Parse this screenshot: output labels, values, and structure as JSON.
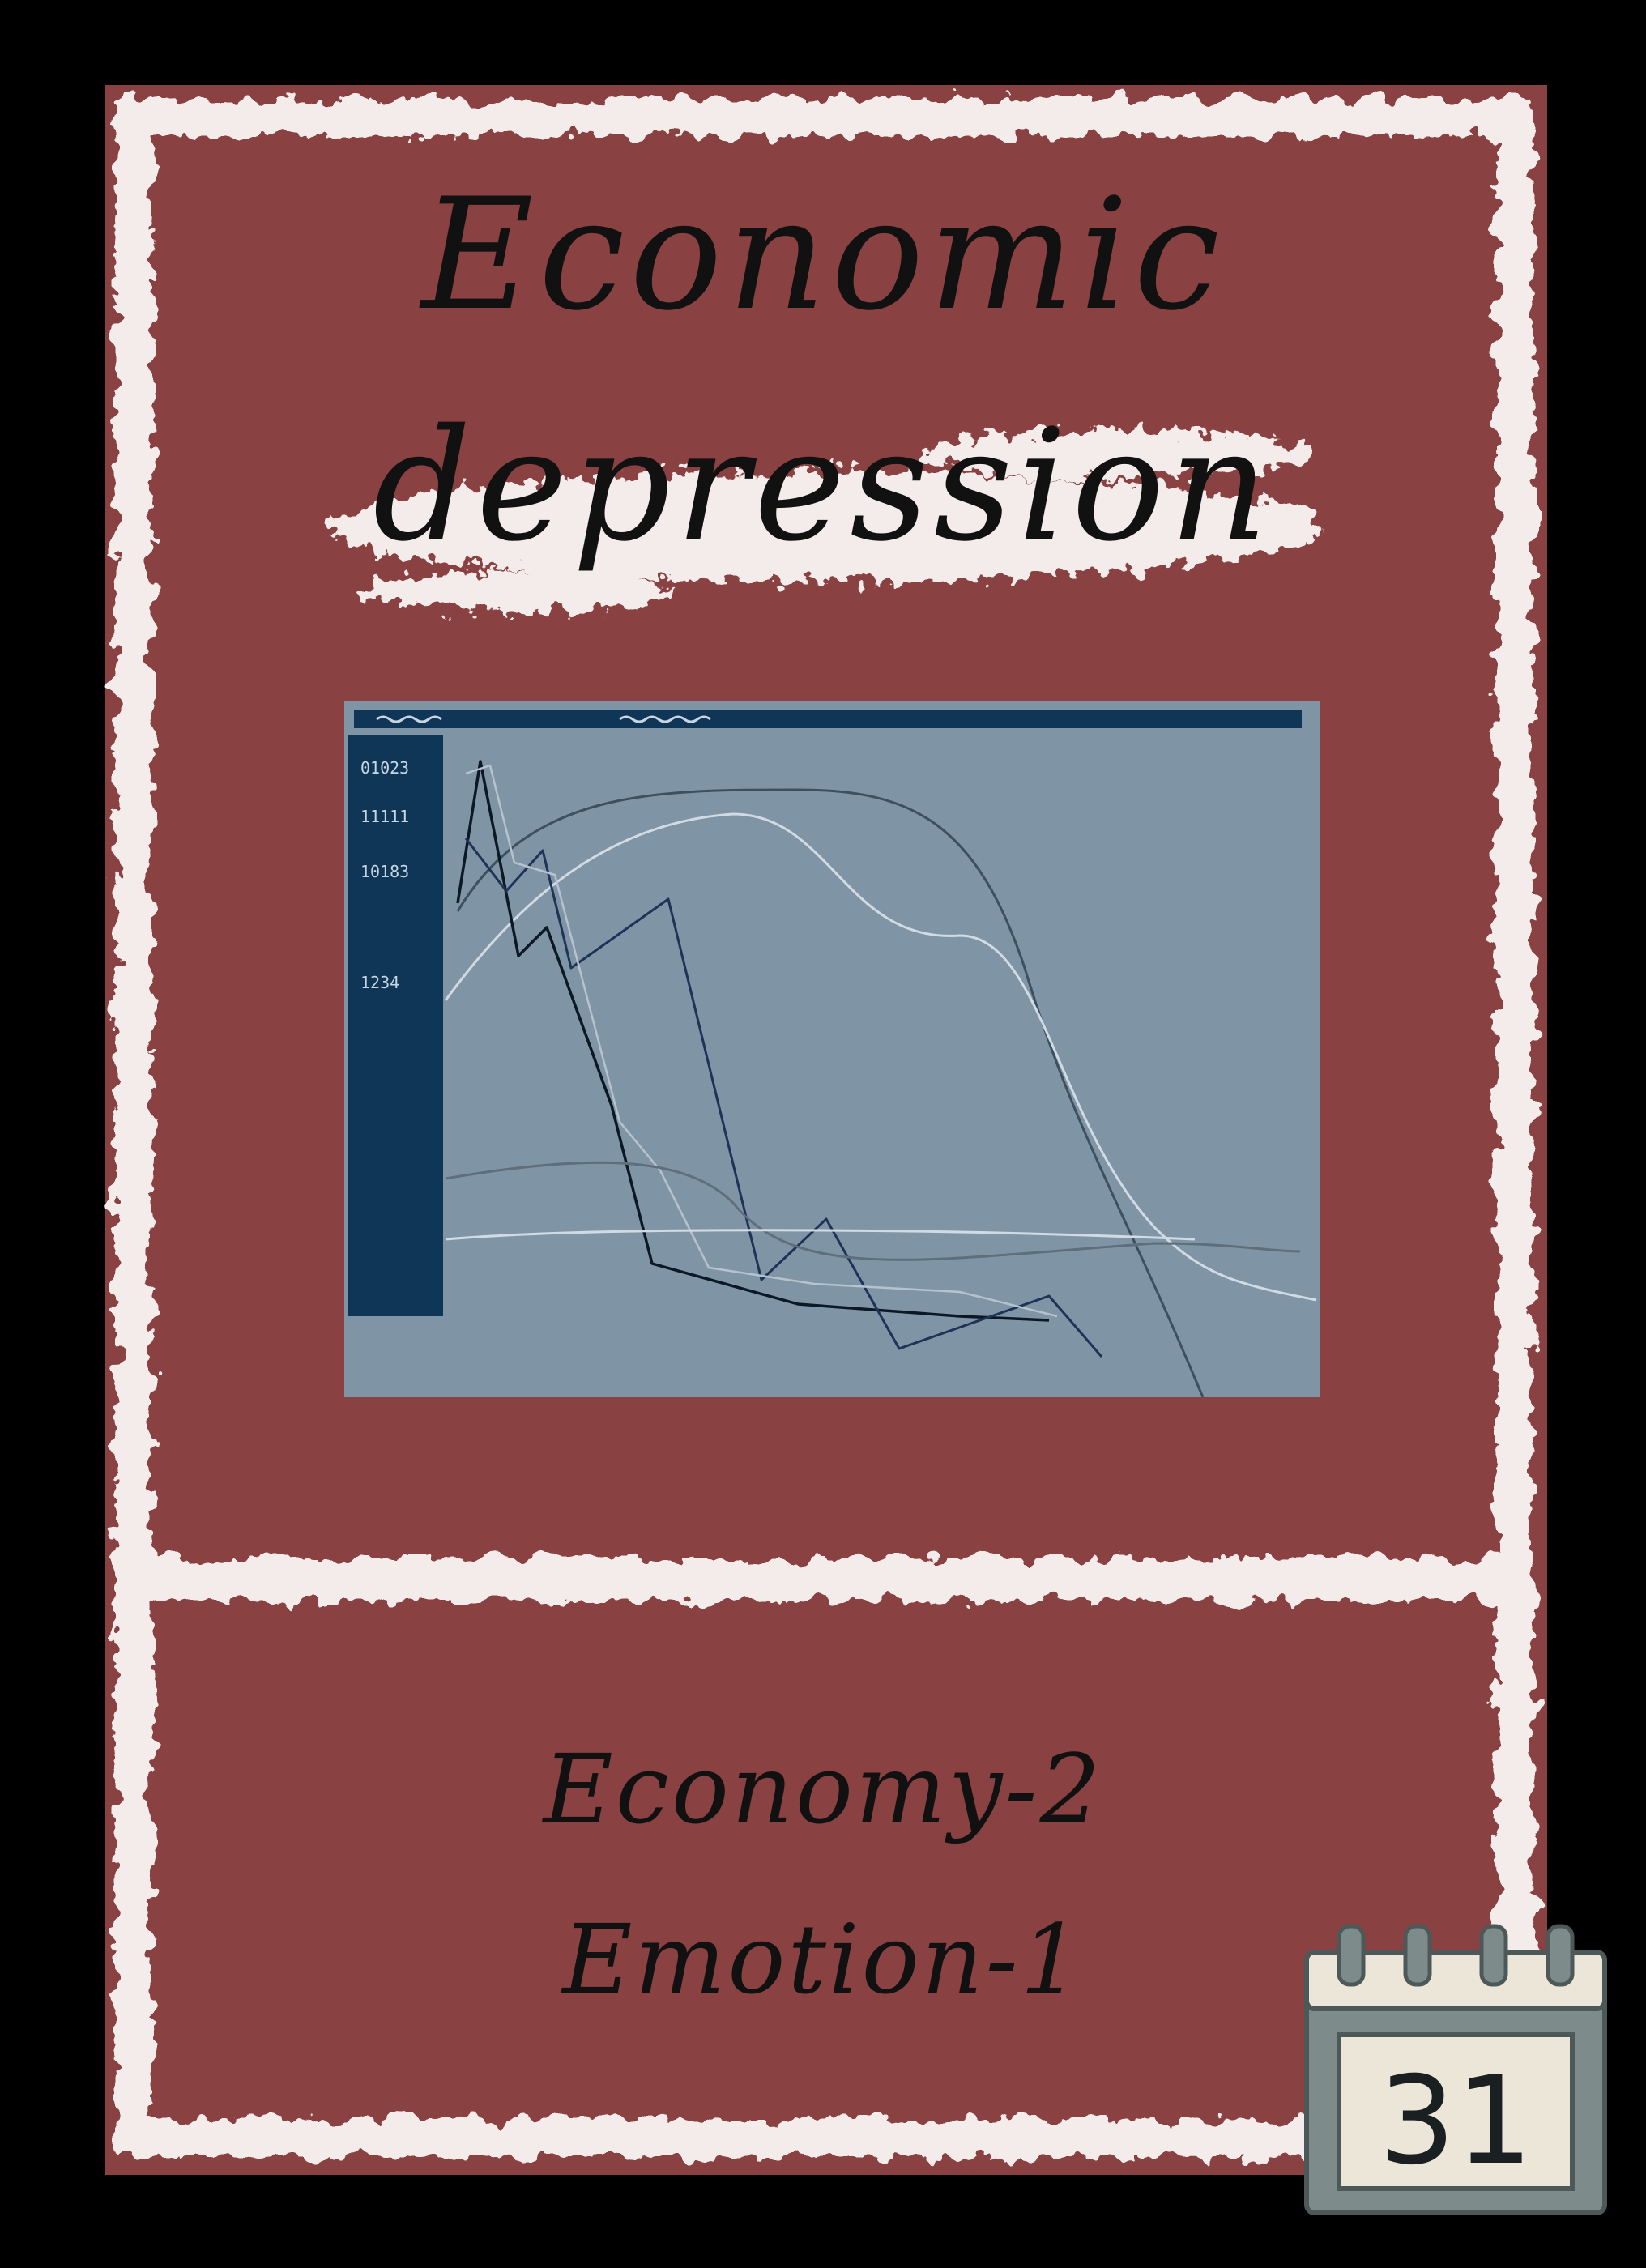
{
  "card": {
    "title_line1": "Economic",
    "title_line2": "depression",
    "stats": [
      "Economy-2",
      "Emotion-1"
    ],
    "colors": {
      "background": "#000000",
      "card": "#8a4142",
      "chalk": "#f3ecea",
      "screen": "#7f95a6",
      "panel": "#0f3557"
    }
  },
  "monitor": {
    "readouts": [
      "01023",
      "11111",
      "10183",
      "1234"
    ],
    "icon": "line-chart-screen"
  },
  "calendar": {
    "icon": "calendar-icon",
    "day": "31"
  }
}
